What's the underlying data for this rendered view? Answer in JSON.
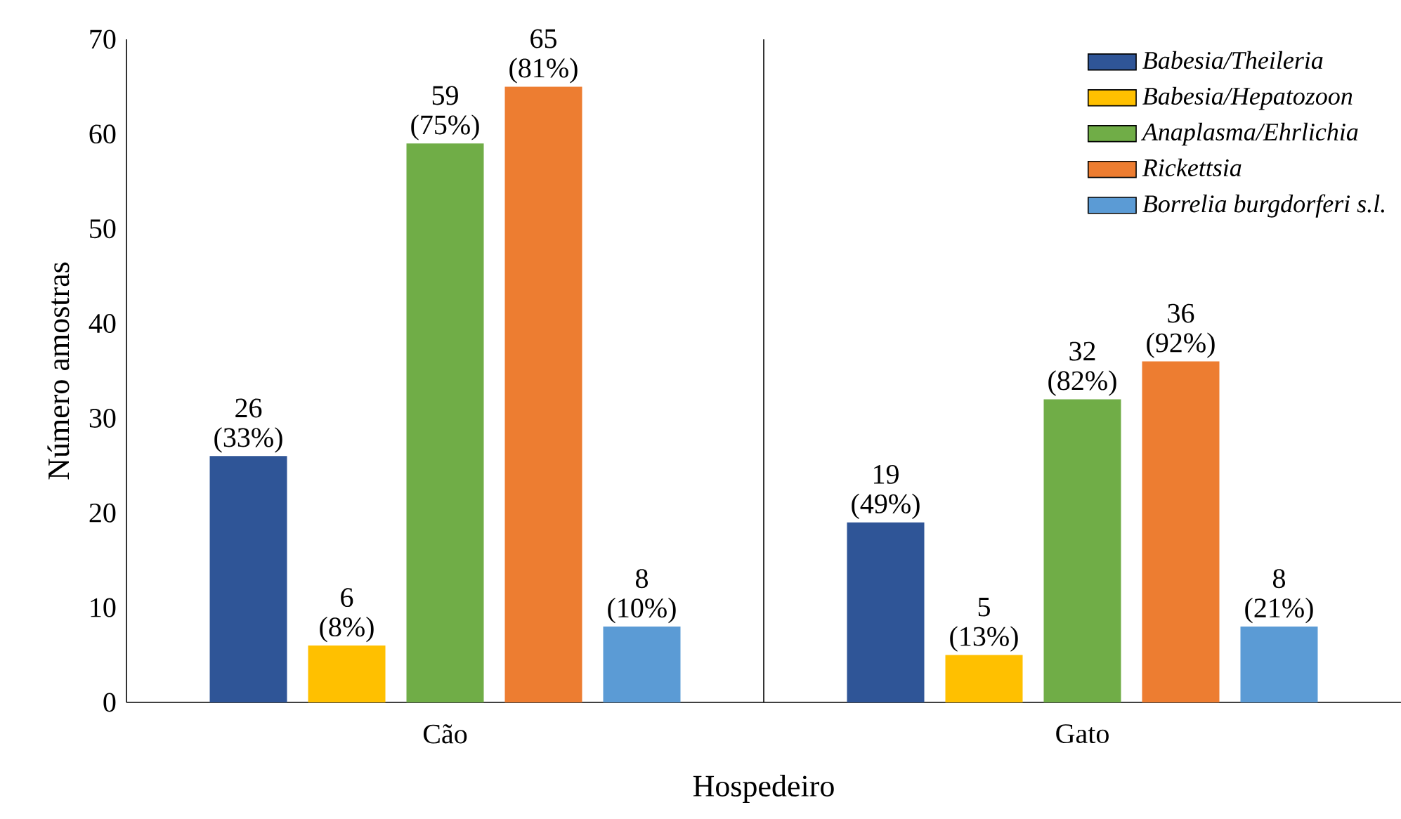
{
  "chart_data": {
    "type": "bar",
    "xlabel": "Hospedeiro",
    "ylabel": "Número amostras",
    "categories": [
      "Cão",
      "Gato"
    ],
    "series": [
      {
        "name": "Babesia/Theileria",
        "color": "#2f5597",
        "values": [
          26,
          19
        ],
        "value_labels": [
          "26 (33%)",
          "19 (49%)"
        ]
      },
      {
        "name": "Babesia/Hepatozoon",
        "color": "#ffc000",
        "values": [
          6,
          5
        ],
        "value_labels": [
          "6 (8%)",
          "5 (13%)"
        ]
      },
      {
        "name": "Anaplasma/Ehrlichia",
        "color": "#70ad47",
        "values": [
          59,
          32
        ],
        "value_labels": [
          "59 (75%)",
          "32 (82%)"
        ]
      },
      {
        "name": "Rickettsia",
        "color": "#ed7d31",
        "values": [
          65,
          36
        ],
        "value_labels": [
          "65 (81%)",
          "36 (92%)"
        ]
      },
      {
        "name": "Borrelia burgdorferi s.l.",
        "color": "#5b9bd5",
        "values": [
          8,
          8
        ],
        "value_labels": [
          "8 (10%)",
          "8 (21%)"
        ]
      }
    ],
    "ylim": [
      0,
      70
    ],
    "yticks": [
      0,
      10,
      20,
      30,
      40,
      50,
      60,
      70
    ],
    "grid": "x",
    "legend": "top right"
  }
}
